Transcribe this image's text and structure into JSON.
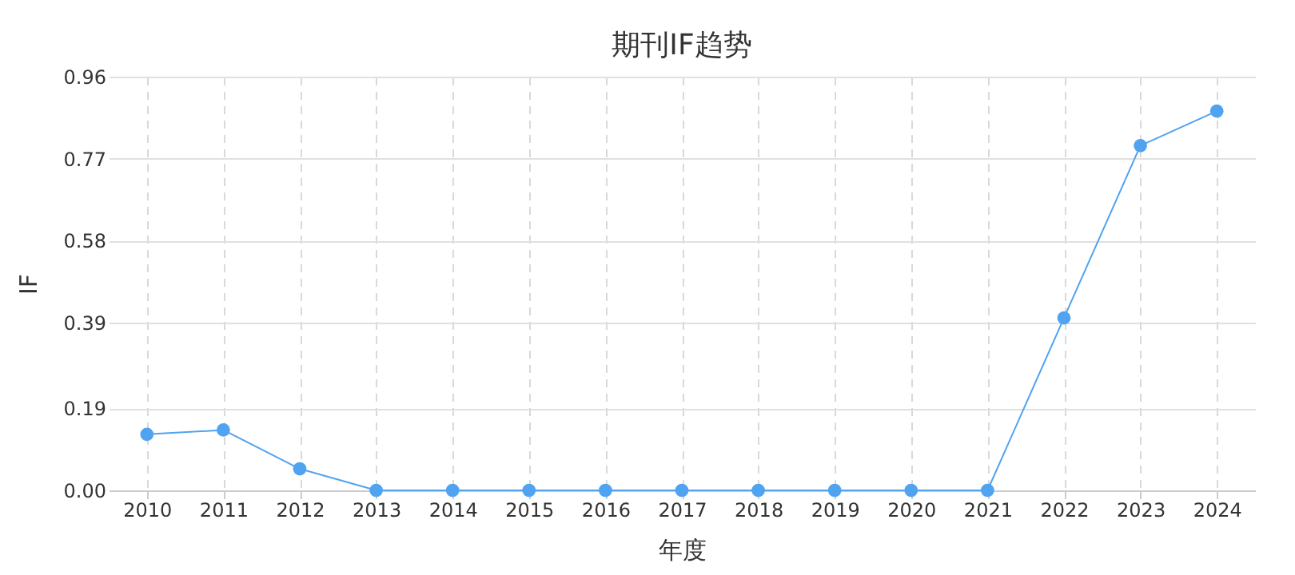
{
  "chart_data": {
    "type": "line",
    "title": "期刊IF趋势",
    "xlabel": "年度",
    "ylabel": "IF",
    "categories": [
      "2010",
      "2011",
      "2012",
      "2013",
      "2014",
      "2015",
      "2016",
      "2017",
      "2018",
      "2019",
      "2020",
      "2021",
      "2022",
      "2023",
      "2024"
    ],
    "series": [
      {
        "color": "#4fa3f0",
        "values": [
          0.13,
          0.14,
          0.05,
          0,
          0,
          0,
          0,
          0,
          0,
          0,
          0,
          0,
          0.4,
          0.8,
          0.88
        ]
      }
    ],
    "ylim": [
      0,
      0.96
    ],
    "yticks": [
      {
        "value": 0,
        "label": "0.00"
      },
      0.19,
      0.39,
      0.58,
      0.77,
      0.96
    ],
    "grid": true,
    "marker": "circle",
    "line_style": "solid"
  }
}
